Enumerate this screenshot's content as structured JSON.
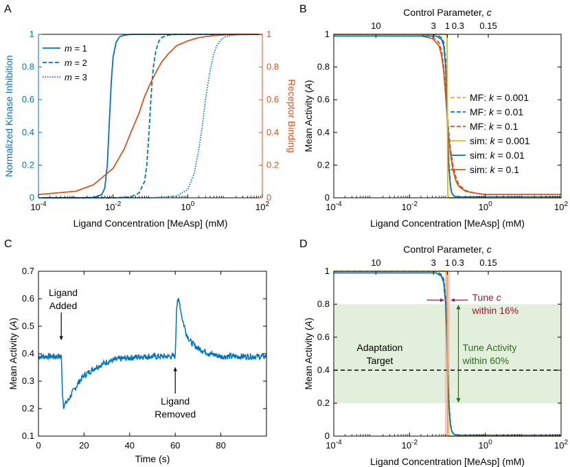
{
  "colors": {
    "blue": "#0072BD",
    "orange": "#D95319",
    "yellow": "#EDB120",
    "green_band": "#E2EFDA",
    "dark_green": "#2E6B1F",
    "crimson": "#A2142F",
    "pink_band": "#F2B8C0",
    "black": "#000000"
  },
  "chart_data": [
    {
      "panel": "A",
      "type": "line",
      "xscale": "log",
      "xlim": [
        0.0001,
        100
      ],
      "xticks": [
        {
          "label": "10",
          "sup": "-4",
          "value": 0.0001
        },
        {
          "label": "10",
          "sup": "-2",
          "value": 0.01
        },
        {
          "label": "10",
          "sup": "0",
          "value": 1
        },
        {
          "label": "10",
          "sup": "2",
          "value": 100
        }
      ],
      "xlabel": "Ligand Concentration [MeAsp] (mM)",
      "ylabel_left": "Normalized Kinase Inhibition",
      "ylabel_right": "Receptor Binding",
      "ylim": [
        0,
        1
      ],
      "yticks_left": [
        "0",
        "0.2",
        "0.4",
        "0.6",
        "0.8",
        "1"
      ],
      "yticks_right": [
        "0",
        "0.2",
        "0.4",
        "0.6",
        "0.8",
        "1"
      ],
      "legend_position": "top-left",
      "legend": [
        {
          "prefix": "m",
          "label": " = 1",
          "style": "solid"
        },
        {
          "prefix": "m",
          "label": " = 2",
          "style": "dashed"
        },
        {
          "prefix": "m",
          "label": " = 3",
          "style": "dotted"
        }
      ],
      "series": [
        {
          "name": "m = 1",
          "axis": "left",
          "color": "blue",
          "style": "solid",
          "x": [
            0.0001,
            0.001,
            0.003,
            0.005,
            0.006,
            0.007,
            0.008,
            0.009,
            0.01,
            0.012,
            0.015,
            0.02,
            0.03,
            0.05,
            0.1,
            1,
            100
          ],
          "y": [
            0,
            0,
            0.002,
            0.02,
            0.06,
            0.2,
            0.48,
            0.72,
            0.86,
            0.95,
            0.985,
            0.995,
            1,
            1,
            1,
            1,
            1
          ]
        },
        {
          "name": "m = 2",
          "axis": "left",
          "color": "blue",
          "style": "dashed",
          "x": [
            0.0001,
            0.01,
            0.03,
            0.05,
            0.07,
            0.08,
            0.09,
            0.1,
            0.11,
            0.12,
            0.14,
            0.17,
            0.2,
            0.3,
            0.5,
            1,
            100
          ],
          "y": [
            0,
            0,
            0.005,
            0.03,
            0.1,
            0.2,
            0.37,
            0.55,
            0.7,
            0.8,
            0.9,
            0.96,
            0.98,
            0.995,
            1,
            1,
            1
          ]
        },
        {
          "name": "m = 3",
          "axis": "left",
          "color": "blue",
          "style": "dotted",
          "x": [
            0.0001,
            0.1,
            0.5,
            1,
            1.5,
            2,
            2.5,
            3,
            3.5,
            4,
            5,
            6,
            8,
            10,
            20,
            100
          ],
          "y": [
            0,
            0,
            0.01,
            0.05,
            0.15,
            0.3,
            0.45,
            0.6,
            0.7,
            0.78,
            0.88,
            0.93,
            0.97,
            0.985,
            0.998,
            1
          ]
        },
        {
          "name": "Receptor Binding",
          "axis": "right",
          "color": "orange",
          "style": "solid",
          "x": [
            0.0001,
            0.001,
            0.003,
            0.01,
            0.02,
            0.03,
            0.05,
            0.07,
            0.1,
            0.15,
            0.2,
            0.3,
            0.5,
            1,
            2,
            5,
            10,
            100
          ],
          "y": [
            0.02,
            0.04,
            0.08,
            0.18,
            0.3,
            0.4,
            0.52,
            0.62,
            0.7,
            0.78,
            0.83,
            0.88,
            0.93,
            0.96,
            0.98,
            0.993,
            0.997,
            1
          ]
        }
      ]
    },
    {
      "panel": "B",
      "type": "line",
      "xscale": "log",
      "xlim": [
        0.0001,
        100
      ],
      "xticks": [
        {
          "label": "10",
          "sup": "-4",
          "value": 0.0001
        },
        {
          "label": "10",
          "sup": "-2",
          "value": 0.01
        },
        {
          "label": "10",
          "sup": "0",
          "value": 1
        },
        {
          "label": "10",
          "sup": "2",
          "value": 100
        }
      ],
      "top_axis_label": "Control Parameter, ",
      "top_axis_var": "c",
      "top_ticks": [
        {
          "label": "10",
          "value": 0.0013
        },
        {
          "label": "3",
          "value": 0.043
        },
        {
          "label": "1",
          "value": 0.1
        },
        {
          "label": "0.3",
          "value": 0.19
        },
        {
          "label": "0.15",
          "value": 1.2
        }
      ],
      "xlabel": "Ligand Concentration [MeAsp] (mM)",
      "ylabel": "Mean Activity (",
      "ylabel_var": "A",
      "ylabel_end": ")",
      "ylim": [
        0,
        1
      ],
      "yticks": [
        "0",
        "0.2",
        "0.4",
        "0.6",
        "0.8",
        "1"
      ],
      "legend_position": "right",
      "legend": [
        {
          "label": "MF: ",
          "k": "k",
          "value": " = 0.001",
          "color": "yellow",
          "style": "dashed"
        },
        {
          "label": "MF: ",
          "k": "k",
          "value": " = 0.01",
          "color": "blue",
          "style": "dashed"
        },
        {
          "label": "MF: ",
          "k": "k",
          "value": " = 0.1",
          "color": "orange",
          "style": "dashed"
        },
        {
          "label": "sim: ",
          "k": "k",
          "value": " = 0.001",
          "color": "yellow",
          "style": "solid"
        },
        {
          "label": "sim: ",
          "k": "k",
          "value": " = 0.01",
          "color": "blue",
          "style": "solid"
        },
        {
          "label": "sim: ",
          "k": "k",
          "value": " = 0.1",
          "color": "orange",
          "style": "solid"
        }
      ],
      "series": [
        {
          "name": "sim: k = 0.1",
          "color": "orange",
          "style": "solid",
          "x": [
            0.0001,
            0.02,
            0.04,
            0.06,
            0.07,
            0.08,
            0.09,
            0.1,
            0.11,
            0.12,
            0.14,
            0.17,
            0.2,
            0.3,
            0.5,
            1,
            100
          ],
          "y": [
            0.99,
            0.99,
            0.975,
            0.93,
            0.87,
            0.77,
            0.62,
            0.47,
            0.36,
            0.27,
            0.17,
            0.1,
            0.07,
            0.04,
            0.03,
            0.02,
            0.02
          ]
        },
        {
          "name": "MF: k = 0.1",
          "color": "orange",
          "style": "dashed",
          "x": [
            0.0001,
            0.02,
            0.04,
            0.06,
            0.07,
            0.08,
            0.09,
            0.1,
            0.11,
            0.12,
            0.14,
            0.17,
            0.2,
            0.3,
            0.5,
            1,
            100
          ],
          "y": [
            1,
            1,
            0.985,
            0.95,
            0.9,
            0.8,
            0.66,
            0.5,
            0.39,
            0.3,
            0.2,
            0.12,
            0.08,
            0.045,
            0.03,
            0.02,
            0.02
          ]
        },
        {
          "name": "sim: k = 0.01",
          "color": "blue",
          "style": "solid",
          "x": [
            0.0001,
            0.05,
            0.07,
            0.08,
            0.09,
            0.095,
            0.1,
            0.105,
            0.11,
            0.12,
            0.13,
            0.15,
            0.2,
            100
          ],
          "y": [
            0.99,
            0.99,
            0.97,
            0.93,
            0.8,
            0.65,
            0.45,
            0.3,
            0.18,
            0.07,
            0.03,
            0.01,
            0.005,
            0.005
          ]
        },
        {
          "name": "MF: k = 0.01",
          "color": "blue",
          "style": "dashed",
          "x": [
            0.0001,
            0.05,
            0.07,
            0.08,
            0.09,
            0.095,
            0.1,
            0.105,
            0.11,
            0.12,
            0.13,
            0.15,
            0.2,
            100
          ],
          "y": [
            1,
            1,
            0.98,
            0.95,
            0.84,
            0.7,
            0.5,
            0.32,
            0.2,
            0.08,
            0.03,
            0.01,
            0.005,
            0.005
          ]
        },
        {
          "name": "sim: k = 0.001",
          "color": "yellow",
          "style": "solid",
          "x": [
            0.0001,
            0.095,
            0.098,
            0.1,
            0.102,
            0.105,
            100
          ],
          "y": [
            1,
            1,
            0.97,
            0.5,
            0.03,
            0,
            0
          ]
        },
        {
          "name": "MF: k = 0.001",
          "color": "yellow",
          "style": "dashed",
          "x": [
            0.0001,
            0.095,
            0.098,
            0.1,
            0.102,
            0.105,
            100
          ],
          "y": [
            1,
            1,
            0.97,
            0.5,
            0.03,
            0,
            0
          ]
        }
      ]
    },
    {
      "panel": "C",
      "type": "line",
      "xlim": [
        0,
        100
      ],
      "xticks": [
        "0",
        "20",
        "40",
        "60",
        "80"
      ],
      "xlabel": "Time (s)",
      "ylabel": "Mean Activity (",
      "ylabel_var": "A",
      "ylabel_end": ")",
      "ylim": [
        0.1,
        0.7
      ],
      "yticks": [
        "0.1",
        "0.2",
        "0.3",
        "0.4",
        "0.5",
        "0.6",
        "0.7"
      ],
      "series": [
        {
          "name": "activity",
          "color": "blue",
          "x": [
            0,
            5,
            10,
            10.6,
            11,
            13,
            15,
            18,
            20,
            25,
            30,
            35,
            40,
            45,
            50,
            55,
            60,
            60.6,
            61,
            62,
            63,
            65,
            67,
            70,
            75,
            80,
            85,
            90,
            95,
            100
          ],
          "y": [
            0.39,
            0.39,
            0.39,
            0.25,
            0.21,
            0.23,
            0.26,
            0.3,
            0.32,
            0.35,
            0.37,
            0.38,
            0.385,
            0.39,
            0.39,
            0.39,
            0.39,
            0.57,
            0.6,
            0.58,
            0.53,
            0.47,
            0.44,
            0.42,
            0.4,
            0.39,
            0.39,
            0.39,
            0.39,
            0.39
          ]
        }
      ],
      "annotations": [
        {
          "lines": [
            "Ligand",
            "Added"
          ],
          "x": 10,
          "y": 0.45
        },
        {
          "lines": [
            "Ligand",
            "Removed"
          ],
          "x": 60,
          "y": 0.2
        }
      ]
    },
    {
      "panel": "D",
      "type": "line",
      "xscale": "log",
      "xlim": [
        0.0001,
        100
      ],
      "xticks": [
        {
          "label": "10",
          "sup": "-4",
          "value": 0.0001
        },
        {
          "label": "10",
          "sup": "-2",
          "value": 0.01
        },
        {
          "label": "10",
          "sup": "0",
          "value": 1
        },
        {
          "label": "10",
          "sup": "2",
          "value": 100
        }
      ],
      "top_axis_label": "Control Parameter, ",
      "top_axis_var": "c",
      "top_ticks": [
        {
          "label": "10",
          "value": 0.0013
        },
        {
          "label": "3",
          "value": 0.043
        },
        {
          "label": "1",
          "value": 0.1
        },
        {
          "label": "0.3",
          "value": 0.19
        },
        {
          "label": "0.15",
          "value": 1.2
        }
      ],
      "xlabel": "Ligand Concentration [MeAsp] (mM)",
      "ylabel": "Mean Activity (",
      "ylabel_var": "A",
      "ylabel_end": ")",
      "ylim": [
        0,
        1
      ],
      "yticks": [
        "0",
        "0.2",
        "0.4",
        "0.6",
        "0.8",
        "1"
      ],
      "green_band": [
        0.2,
        0.8
      ],
      "pink_band_x": [
        0.086,
        0.115
      ],
      "target_line": 0.4,
      "series": [
        {
          "name": "sim: k = 0.01",
          "color": "blue",
          "style": "solid",
          "x": [
            0.0001,
            0.05,
            0.07,
            0.08,
            0.09,
            0.095,
            0.1,
            0.105,
            0.11,
            0.12,
            0.13,
            0.15,
            0.2,
            100
          ],
          "y": [
            0.99,
            0.99,
            0.97,
            0.93,
            0.8,
            0.65,
            0.45,
            0.3,
            0.18,
            0.07,
            0.03,
            0.01,
            0.005,
            0.005
          ]
        },
        {
          "name": "MF: k = 0.01",
          "color": "blue",
          "style": "dashed",
          "x": [
            0.0001,
            0.05,
            0.07,
            0.08,
            0.09,
            0.095,
            0.1,
            0.105,
            0.11,
            0.12,
            0.13,
            0.15,
            0.2,
            100
          ],
          "y": [
            1,
            1,
            0.98,
            0.95,
            0.84,
            0.7,
            0.5,
            0.32,
            0.2,
            0.08,
            0.03,
            0.01,
            0.005,
            0.005
          ]
        },
        {
          "name": "sim: k = 0.001",
          "color": "yellow",
          "style": "solid",
          "x": [
            0.0001,
            0.095,
            0.098,
            0.1,
            0.102,
            0.105,
            100
          ],
          "y": [
            1,
            1,
            0.97,
            0.5,
            0.03,
            0,
            0
          ]
        }
      ],
      "annotations": {
        "adaptation_target": [
          "Adaptation",
          "Target"
        ],
        "tune_c": {
          "line1_prefix": "Tune ",
          "line1_var": "c",
          "line2": "within 16%"
        },
        "tune_activity": [
          "Tune Activity",
          "within 60%"
        ]
      }
    }
  ],
  "panel_labels": [
    "A",
    "B",
    "C",
    "D"
  ]
}
